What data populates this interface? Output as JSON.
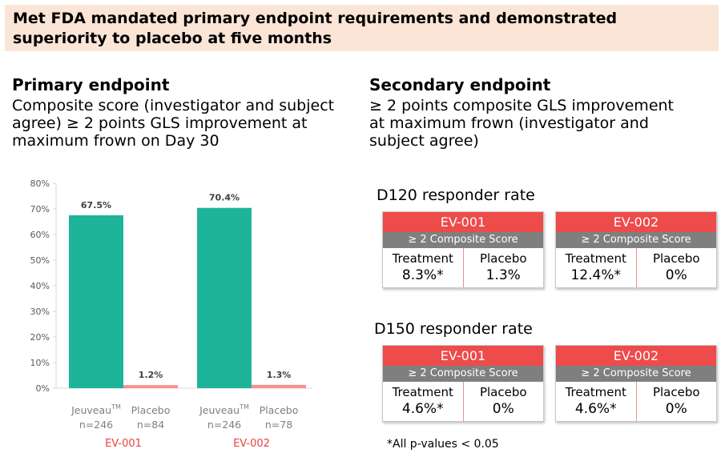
{
  "banner": {
    "title": "Met FDA mandated primary endpoint requirements and demonstrated superiority to placebo at five months"
  },
  "primary": {
    "heading": "Primary endpoint",
    "text": "Composite score (investigator and subject\nagree) ≥ 2 points GLS improvement at\nmaximum frown on Day 30"
  },
  "secondary": {
    "heading": "Secondary endpoint",
    "text": "≥ 2 points composite GLS improvement\nat maximum frown (investigator and\nsubject agree)"
  },
  "chart_data": {
    "type": "bar",
    "ylim": [
      0,
      80
    ],
    "yticks": [
      "0%",
      "10%",
      "20%",
      "30%",
      "40%",
      "50%",
      "60%",
      "70%",
      "80%"
    ],
    "grid": false,
    "groups": [
      {
        "study": "EV-001",
        "bars": [
          {
            "label": "Jeuveau™",
            "n": "n=246",
            "value": 67.5,
            "value_label": "67.5%"
          },
          {
            "label": "Placebo",
            "n": "n=84",
            "value": 1.2,
            "value_label": "1.2%"
          }
        ]
      },
      {
        "study": "EV-002",
        "bars": [
          {
            "label": "Jeuveau™",
            "n": "n=246",
            "value": 70.4,
            "value_label": "70.4%"
          },
          {
            "label": "Placebo",
            "n": "n=78",
            "value": 1.3,
            "value_label": "1.3%"
          }
        ]
      }
    ],
    "colors": {
      "treatment": "#1db49a",
      "placebo": "#f4928e",
      "study_label": "#e8423e"
    }
  },
  "responder": [
    {
      "title": "D120 responder rate",
      "cards": [
        {
          "study": "EV-001",
          "sub": "≥ 2 Composite Score",
          "treatment_label": "Treatment",
          "treatment": "8.3%*",
          "placebo_label": "Placebo",
          "placebo": "1.3%"
        },
        {
          "study": "EV-002",
          "sub": "≥ 2 Composite Score",
          "treatment_label": "Treatment",
          "treatment": "12.4%*",
          "placebo_label": "Placebo",
          "placebo": "0%"
        }
      ]
    },
    {
      "title": "D150 responder rate",
      "cards": [
        {
          "study": "EV-001",
          "sub": "≥ 2 Composite Score",
          "treatment_label": "Treatment",
          "treatment": "4.6%*",
          "placebo_label": "Placebo",
          "placebo": "0%"
        },
        {
          "study": "EV-002",
          "sub": "≥ 2 Composite Score",
          "treatment_label": "Treatment",
          "treatment": "4.6%*",
          "placebo_label": "Placebo",
          "placebo": "0%"
        }
      ]
    }
  ],
  "footnote": "*All p-values < 0.05"
}
